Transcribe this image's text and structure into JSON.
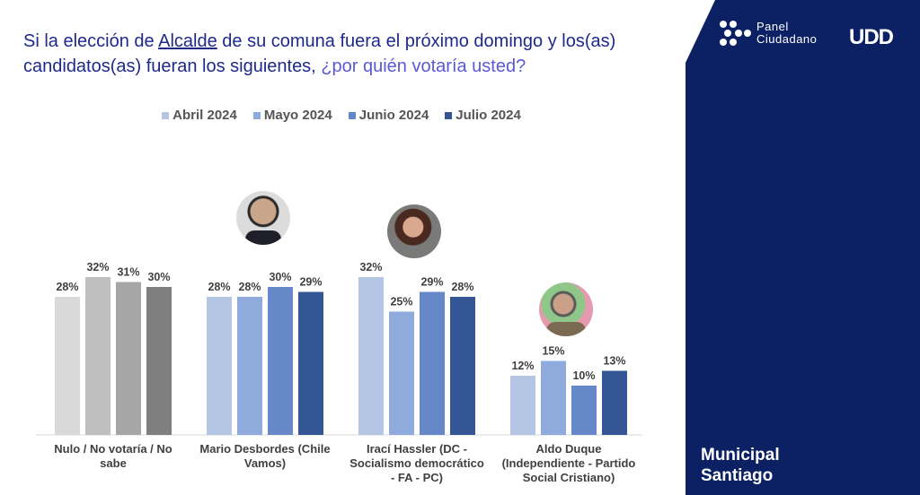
{
  "header": {
    "title_part1": "Si la elección de ",
    "title_underlined": "Alcalde",
    "title_part2": " de su comuna fuera el próximo domingo y los(as) candidatos(as) fueran los siguientes, ",
    "title_question": "¿por quién votaría usted?"
  },
  "brand": {
    "logo_line1": "Panel",
    "logo_line2": "Ciudadano",
    "udd": "UDD",
    "panel_color": "#0b2163"
  },
  "footer": {
    "line1": "Municipal",
    "line2": "Santiago"
  },
  "chart_data": {
    "type": "bar",
    "title": "Si la elección de Alcalde de su comuna fuera el próximo domingo y los(as) candidatos(as) fueran los siguientes, ¿por quién votaría usted?",
    "xlabel": "",
    "ylabel": "",
    "ylim": [
      0,
      35
    ],
    "grid": false,
    "legend_position": "top-center",
    "categories": [
      "Nulo / No votaría / No sabe",
      "Mario Desbordes (Chile Vamos)",
      "Irací Hassler (DC - Socialismo democrático - FA - PC)",
      "Aldo Duque (Independiente - Partido Social Cristiano)"
    ],
    "category_lines": [
      [
        "Nulo / No votaría / No",
        "sabe"
      ],
      [
        "Mario Desbordes (Chile",
        "Vamos)"
      ],
      [
        "Irací Hassler (DC -",
        "Socialismo democrático",
        "- FA - PC)"
      ],
      [
        "Aldo Duque",
        "(Independiente - Partido",
        "Social Cristiano)"
      ]
    ],
    "series": [
      {
        "name": "Abril 2024",
        "color": "#b4c6e4",
        "values": [
          28,
          28,
          32,
          12
        ]
      },
      {
        "name": "Mayo 2024",
        "color": "#8faadc",
        "values": [
          32,
          28,
          25,
          15
        ]
      },
      {
        "name": "Junio 2024",
        "color": "#6788c8",
        "values": [
          31,
          30,
          29,
          10
        ]
      },
      {
        "name": "Julio 2024",
        "color": "#345695",
        "values": [
          30,
          29,
          28,
          13
        ]
      }
    ],
    "first_group_colors": [
      "#d9d9d9",
      "#bfbfbf",
      "#a6a6a6",
      "#7f7f7f"
    ],
    "value_suffix": "%"
  }
}
